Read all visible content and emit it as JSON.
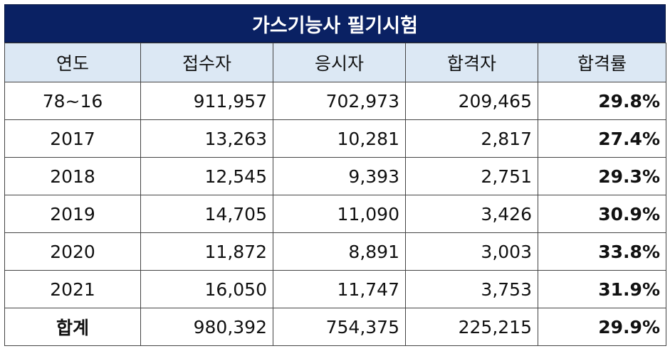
{
  "title": "가스기능사 필기시험",
  "headers": [
    "연도",
    "접수자",
    "응시자",
    "합격자",
    "합격률"
  ],
  "rows": [
    {
      "year": "78~16",
      "applicants": "911,957",
      "examinees": "702,973",
      "passed": "209,465",
      "rate": "29.8%"
    },
    {
      "year": "2017",
      "applicants": "13,263",
      "examinees": "10,281",
      "passed": "2,817",
      "rate": "27.4%"
    },
    {
      "year": "2018",
      "applicants": "12,545",
      "examinees": "9,393",
      "passed": "2,751",
      "rate": "29.3%"
    },
    {
      "year": "2019",
      "applicants": "14,705",
      "examinees": "11,090",
      "passed": "3,426",
      "rate": "30.9%"
    },
    {
      "year": "2020",
      "applicants": "11,872",
      "examinees": "8,891",
      "passed": "3,003",
      "rate": "33.8%"
    },
    {
      "year": "2021",
      "applicants": "16,050",
      "examinees": "11,747",
      "passed": "3,753",
      "rate": "31.9%"
    },
    {
      "year": "합계",
      "applicants": "980,392",
      "examinees": "754,375",
      "passed": "225,215",
      "rate": "29.9%"
    }
  ],
  "colors": {
    "title_bg": "#0a2163",
    "title_text": "#ffffff",
    "header_bg": "#dce8f4",
    "border": "#444444"
  }
}
